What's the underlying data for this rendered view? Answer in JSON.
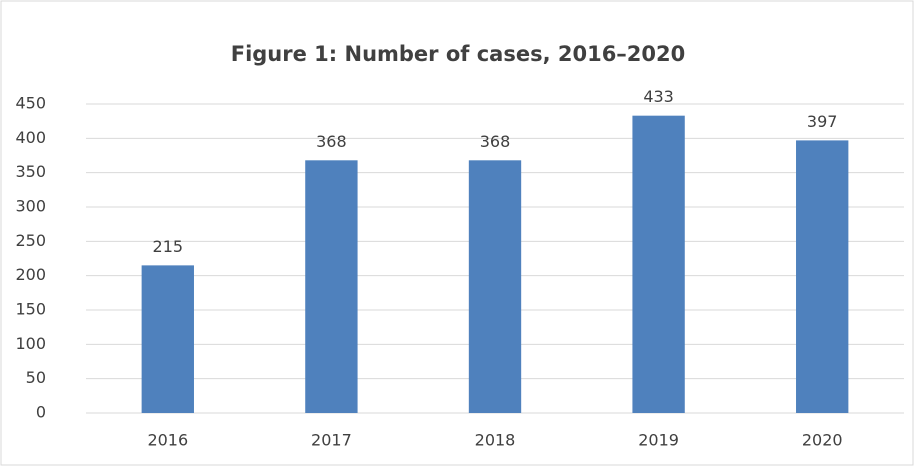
{
  "chart_data": {
    "type": "bar",
    "title": "Figure 1: Number of cases, 2016–2020",
    "categories": [
      "2016",
      "2017",
      "2018",
      "2019",
      "2020"
    ],
    "values": [
      215,
      368,
      368,
      433,
      397
    ],
    "color": "#4f81bd",
    "ylim": [
      0,
      450
    ],
    "yticks": [
      0,
      50,
      100,
      150,
      200,
      250,
      300,
      350,
      400,
      450
    ],
    "grid": true
  }
}
